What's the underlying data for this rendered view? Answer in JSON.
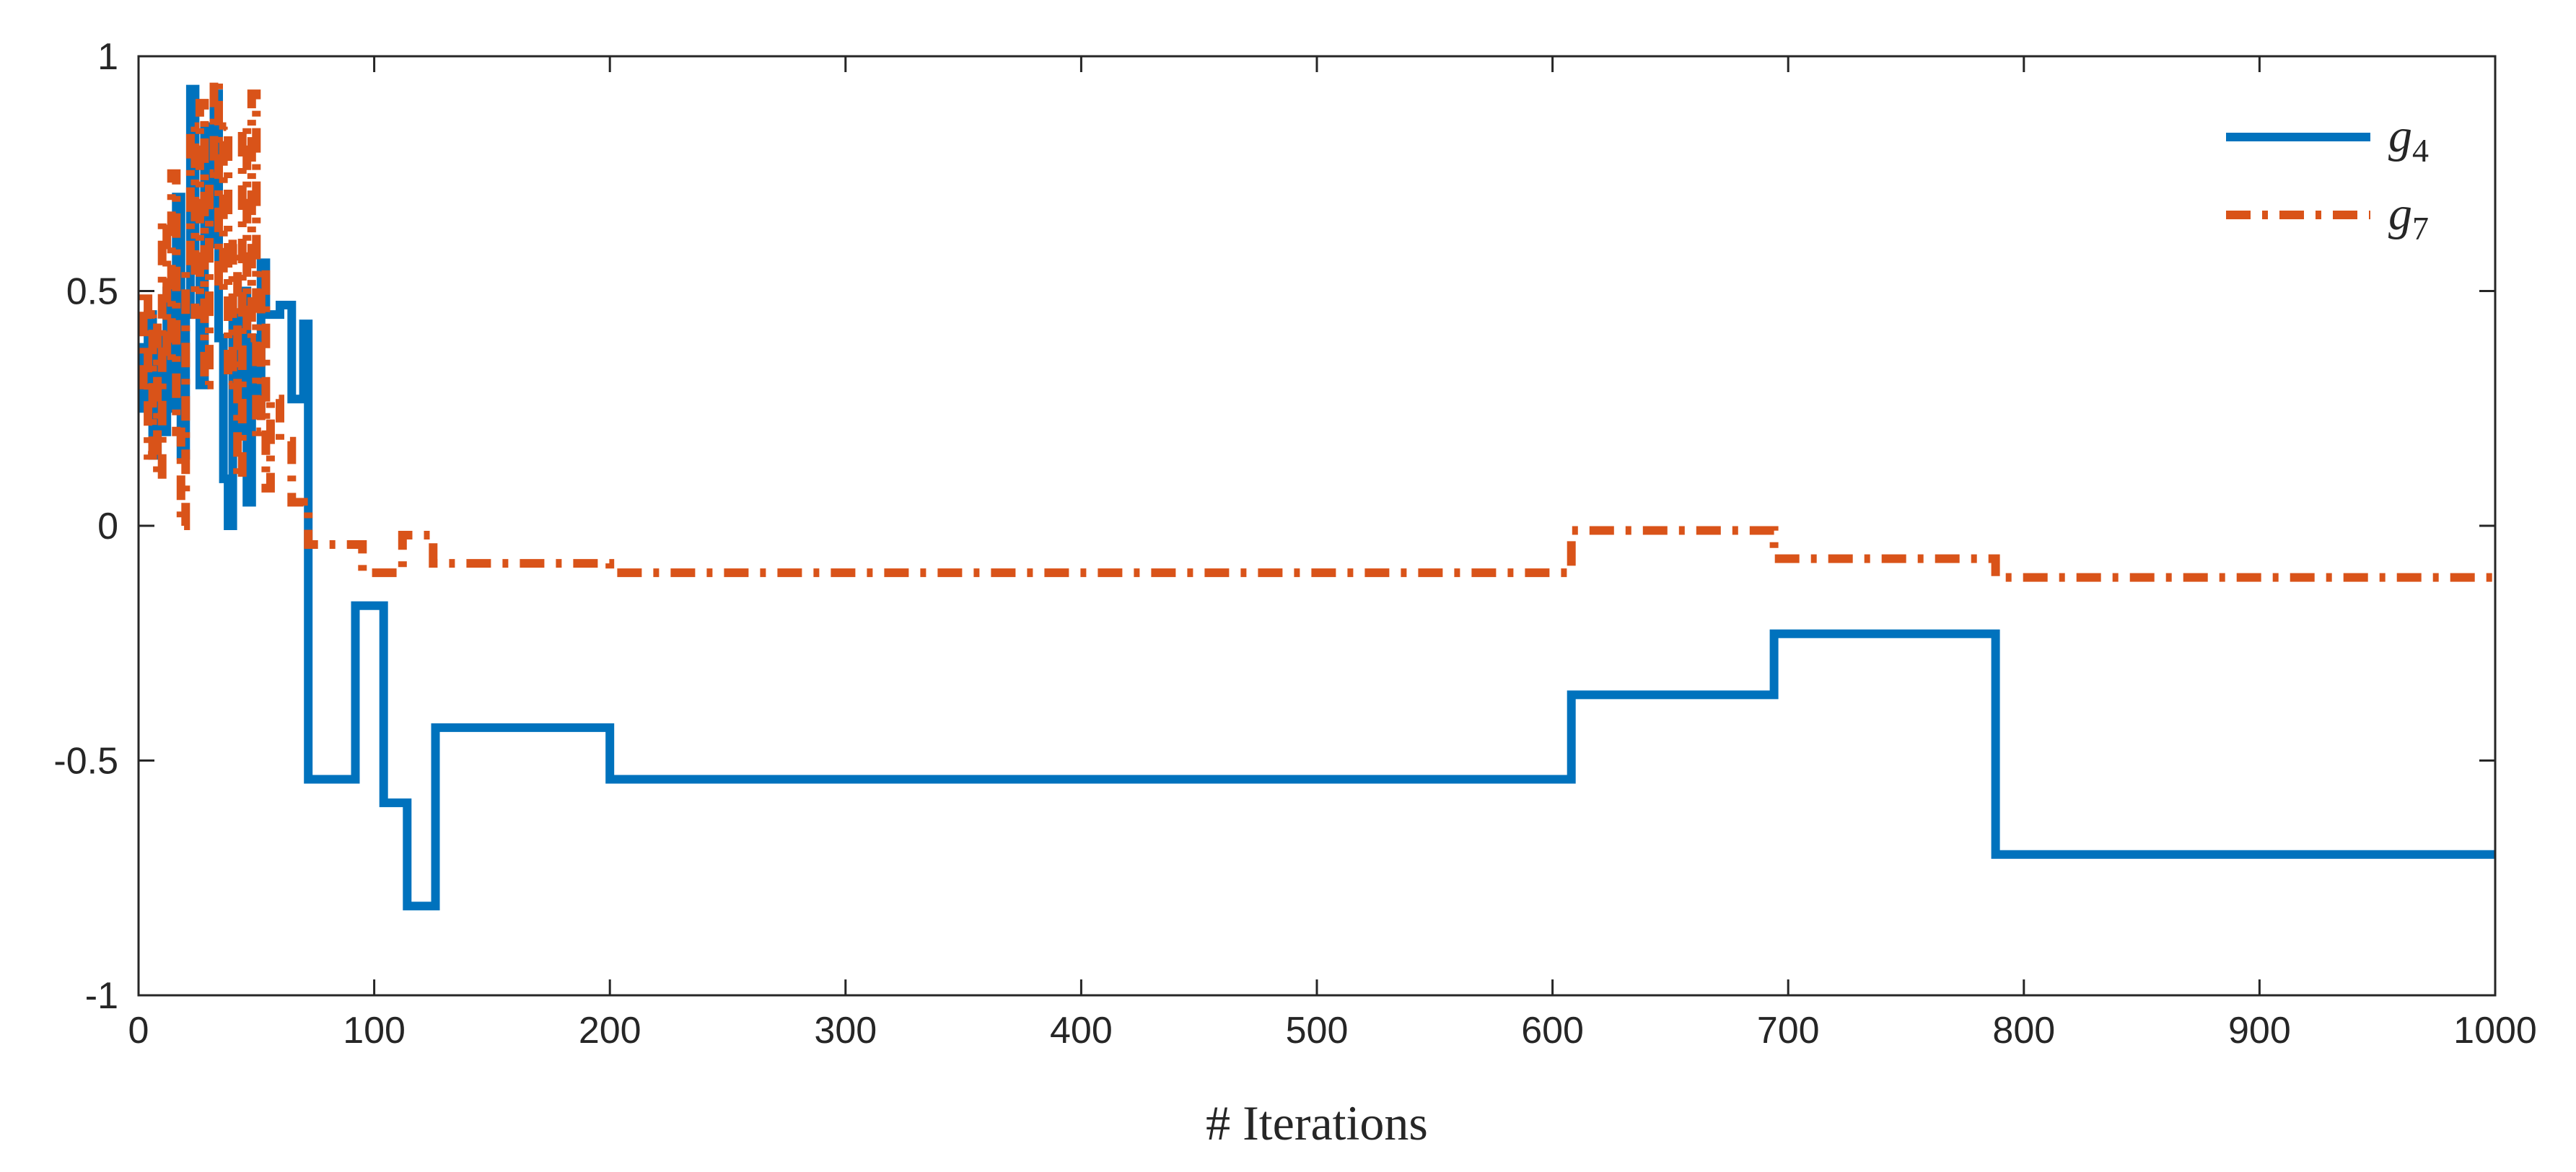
{
  "chart_data": {
    "type": "line",
    "title": "",
    "xlabel": "# Iterations",
    "ylabel": "",
    "xlim": [
      0,
      1000
    ],
    "ylim": [
      -1,
      1
    ],
    "x_ticks": [
      0,
      100,
      200,
      300,
      400,
      500,
      600,
      700,
      800,
      900,
      1000
    ],
    "x_tick_labels": [
      "0",
      "100",
      "200",
      "300",
      "400",
      "500",
      "600",
      "700",
      "800",
      "900",
      "1000"
    ],
    "y_ticks": [
      -1,
      -0.5,
      0,
      0.5,
      1
    ],
    "y_tick_labels": [
      "-1",
      "-0.5",
      "0",
      "0.5",
      "1"
    ],
    "grid": false,
    "legend_position": "top-right",
    "series": [
      {
        "name": "g4",
        "name_base": "g",
        "name_sub": "4",
        "color": "#0072BD",
        "line_style": "solid",
        "step": true,
        "points": [
          [
            0,
            0.38
          ],
          [
            2,
            0.25
          ],
          [
            4,
            0.45
          ],
          [
            6,
            0.15
          ],
          [
            8,
            0.4
          ],
          [
            10,
            0.2
          ],
          [
            12,
            0.5
          ],
          [
            14,
            0.25
          ],
          [
            16,
            0.7
          ],
          [
            18,
            0.15
          ],
          [
            20,
            0.45
          ],
          [
            22,
            0.93
          ],
          [
            24,
            0.55
          ],
          [
            26,
            0.3
          ],
          [
            28,
            0.85
          ],
          [
            30,
            0.6
          ],
          [
            32,
            0.92
          ],
          [
            34,
            0.4
          ],
          [
            36,
            0.1
          ],
          [
            38,
            0.0
          ],
          [
            40,
            0.45
          ],
          [
            42,
            0.2
          ],
          [
            44,
            0.5
          ],
          [
            46,
            0.05
          ],
          [
            48,
            0.4
          ],
          [
            50,
            0.25
          ],
          [
            52,
            0.56
          ],
          [
            54,
            0.45
          ],
          [
            60,
            0.47
          ],
          [
            65,
            0.27
          ],
          [
            70,
            0.43
          ],
          [
            72,
            -0.54
          ],
          [
            92,
            -0.17
          ],
          [
            104,
            -0.59
          ],
          [
            114,
            -0.81
          ],
          [
            126,
            -0.43
          ],
          [
            200,
            -0.54
          ],
          [
            608,
            -0.36
          ],
          [
            694,
            -0.23
          ],
          [
            788,
            -0.7
          ],
          [
            1000,
            -0.7
          ]
        ]
      },
      {
        "name": "g7",
        "name_base": "g",
        "name_sub": "7",
        "color": "#D95319",
        "line_style": "dash-dot",
        "step": true,
        "points": [
          [
            0,
            0.3
          ],
          [
            2,
            0.5
          ],
          [
            4,
            0.15
          ],
          [
            6,
            0.45
          ],
          [
            8,
            0.1
          ],
          [
            10,
            0.65
          ],
          [
            12,
            0.35
          ],
          [
            14,
            0.75
          ],
          [
            16,
            0.2
          ],
          [
            18,
            0.0
          ],
          [
            20,
            0.55
          ],
          [
            22,
            0.85
          ],
          [
            24,
            0.45
          ],
          [
            26,
            0.9
          ],
          [
            28,
            0.3
          ],
          [
            30,
            0.75
          ],
          [
            32,
            0.95
          ],
          [
            34,
            0.5
          ],
          [
            36,
            0.85
          ],
          [
            38,
            0.3
          ],
          [
            40,
            0.6
          ],
          [
            42,
            0.1
          ],
          [
            44,
            0.85
          ],
          [
            46,
            0.4
          ],
          [
            48,
            0.92
          ],
          [
            50,
            0.2
          ],
          [
            52,
            0.55
          ],
          [
            54,
            0.08
          ],
          [
            56,
            0.27
          ],
          [
            60,
            0.18
          ],
          [
            65,
            0.05
          ],
          [
            70,
            0.03
          ],
          [
            72,
            -0.04
          ],
          [
            95,
            -0.1
          ],
          [
            112,
            -0.02
          ],
          [
            125,
            -0.08
          ],
          [
            200,
            -0.1
          ],
          [
            608,
            -0.01
          ],
          [
            694,
            -0.07
          ],
          [
            788,
            -0.11
          ],
          [
            1000,
            -0.11
          ]
        ]
      }
    ]
  }
}
